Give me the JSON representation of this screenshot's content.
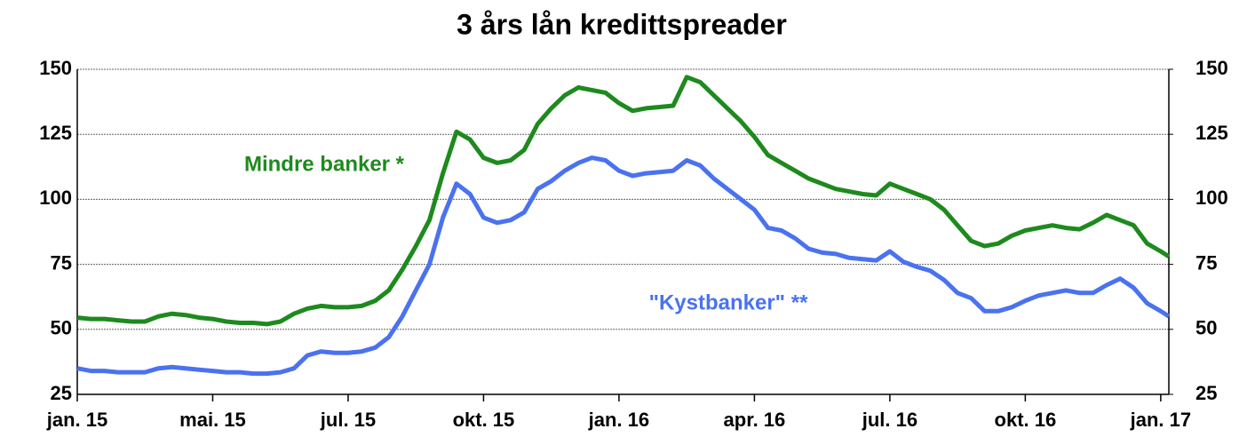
{
  "chart_data": {
    "type": "line",
    "title": "3 års lån kredittspreader",
    "x": [
      0,
      1,
      2,
      3,
      4,
      5,
      6,
      7,
      8,
      9,
      10,
      11,
      12,
      13,
      14,
      15,
      16,
      17,
      18,
      19,
      20,
      21,
      22,
      23,
      24,
      25,
      26,
      27,
      28,
      29,
      30,
      31,
      32,
      33,
      34,
      35,
      36,
      37,
      38,
      39,
      40,
      41,
      42,
      43,
      44,
      45,
      46,
      47,
      48,
      49,
      50,
      51,
      52,
      53,
      54,
      55,
      56,
      57,
      58,
      59,
      60,
      61,
      62,
      63,
      64,
      65,
      66,
      67,
      68,
      69,
      70,
      71,
      72,
      73,
      74,
      75,
      76,
      77,
      78,
      79,
      80,
      80.6
    ],
    "series": [
      {
        "name": "Mindre banker *",
        "color": "#1e8a1e",
        "values": [
          54.5,
          54,
          54,
          53.5,
          53,
          53,
          55,
          56,
          55.5,
          54.5,
          54,
          53,
          52.5,
          52.5,
          52,
          53,
          56,
          58,
          59,
          58.5,
          58.5,
          59,
          61,
          65,
          73,
          82,
          92,
          110,
          126,
          123,
          116,
          114,
          115,
          119,
          129,
          135,
          140,
          143,
          142,
          141,
          137,
          134,
          135,
          135.5,
          136,
          147,
          145,
          140,
          135,
          130,
          124,
          117,
          114,
          111,
          108,
          106,
          104,
          103,
          102,
          101.5,
          106,
          104,
          102,
          100,
          96,
          90,
          84,
          82,
          83,
          86,
          88,
          89,
          90,
          89,
          88.5,
          91,
          94,
          92,
          90,
          83,
          80,
          78
        ]
      },
      {
        "name": "\"Kystbanker\" **",
        "color": "#4a72f0",
        "values": [
          35,
          34,
          34,
          33.5,
          33.5,
          33.5,
          35,
          35.5,
          35,
          34.5,
          34,
          33.5,
          33.5,
          33,
          33,
          33.5,
          35,
          40,
          41.5,
          41,
          41,
          41.5,
          43,
          47,
          55,
          65,
          75,
          93,
          106,
          102,
          93,
          91,
          92,
          95,
          104,
          107,
          111,
          114,
          116,
          115,
          111,
          109,
          110,
          110.5,
          111,
          115,
          113,
          108,
          104,
          100,
          96,
          89,
          88,
          85,
          81,
          79.5,
          79,
          77.5,
          77,
          76.5,
          80,
          76,
          74,
          72.5,
          69,
          64,
          62,
          57,
          57,
          58.5,
          61,
          63,
          64,
          65,
          64,
          64,
          67,
          69.5,
          66,
          60,
          57,
          55
        ]
      }
    ],
    "xlim": [
      0,
      80.6
    ],
    "xticks": [
      {
        "value": 0,
        "label": "jan. 15"
      },
      {
        "value": 10,
        "label": "mai. 15"
      },
      {
        "value": 20,
        "label": "jul. 15"
      },
      {
        "value": 30,
        "label": "okt. 15"
      },
      {
        "value": 40,
        "label": "jan. 16"
      },
      {
        "value": 50,
        "label": "apr. 16"
      },
      {
        "value": 60,
        "label": "jul. 16"
      },
      {
        "value": 70,
        "label": "okt. 16"
      },
      {
        "value": 80,
        "label": "jan. 17"
      }
    ],
    "ylim": [
      25,
      150
    ],
    "yticks": [
      25,
      50,
      75,
      100,
      125,
      150
    ],
    "y2lim": [
      25,
      150
    ],
    "y2ticks": [
      25,
      50,
      75,
      100,
      125,
      150
    ],
    "grid": true
  }
}
